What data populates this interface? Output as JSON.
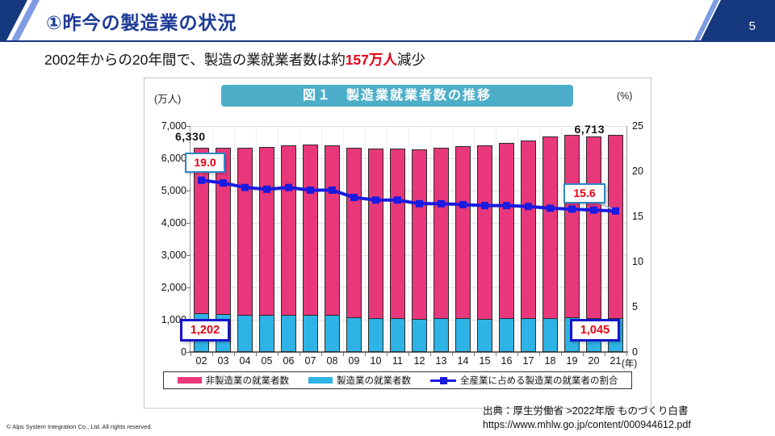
{
  "header": {
    "title": "①昨今の製造業の状況",
    "page_number": "5"
  },
  "subtitle": {
    "prefix": "2002年からの20年間で、製造の業就業者数は約",
    "highlight": "157万人",
    "suffix": "減少"
  },
  "figure": {
    "banner_title": "図１　製造業就業者数の推移",
    "left_unit": "(万人)",
    "right_unit": "(%)",
    "x_unit": "(年)",
    "annotations": {
      "first_total": "6,330",
      "last_total": "6,713",
      "first_share": "19.0",
      "last_share": "15.6",
      "first_mfg": "1,202",
      "last_mfg": "1,045"
    }
  },
  "legend": {
    "items": [
      {
        "label": "非製造業の就業者数",
        "swatch": "bar",
        "color": "#E8387B"
      },
      {
        "label": "製造業の就業者数",
        "swatch": "bar",
        "color": "#2EB3E6"
      },
      {
        "label": "全産業に占める製造業の就業者の割合",
        "swatch": "line-marker",
        "color": "#1A1AE0"
      }
    ]
  },
  "chart_data": {
    "type": "combo (stacked bar + line)",
    "title": "図１　製造業就業者数の推移",
    "categories": [
      "02",
      "03",
      "04",
      "05",
      "06",
      "07",
      "08",
      "09",
      "10",
      "11",
      "12",
      "13",
      "14",
      "15",
      "16",
      "17",
      "18",
      "19",
      "20",
      "21"
    ],
    "x_axis_unit": "年",
    "left_axis": {
      "unit": "万人",
      "min": 0,
      "max": 7000,
      "step": 1000
    },
    "right_axis": {
      "unit": "%",
      "min": 0,
      "max": 25,
      "step": 5
    },
    "grid": true,
    "legend_position": "bottom",
    "series": [
      {
        "name": "非製造業の就業者数",
        "kind": "bar-stacked",
        "color": "#E8387B",
        "values": [
          5128,
          5138,
          5179,
          5214,
          5228,
          5276,
          5263,
          5232,
          5238,
          5236,
          5248,
          5287,
          5331,
          5367,
          5420,
          5490,
          5604,
          5661,
          5625,
          5668
        ]
      },
      {
        "name": "製造業の就業者数",
        "kind": "bar-stacked",
        "color": "#2EB3E6",
        "values": [
          1202,
          1178,
          1150,
          1142,
          1161,
          1151,
          1146,
          1082,
          1060,
          1057,
          1032,
          1039,
          1040,
          1035,
          1045,
          1052,
          1060,
          1063,
          1051,
          1045
        ]
      },
      {
        "name": "全産業に占める製造業の就業者の割合",
        "kind": "line",
        "axis": "right",
        "color": "#1A1AE0",
        "values": [
          19.0,
          18.7,
          18.2,
          18.0,
          18.2,
          17.9,
          17.9,
          17.1,
          16.8,
          16.8,
          16.4,
          16.4,
          16.3,
          16.2,
          16.2,
          16.1,
          15.9,
          15.8,
          15.7,
          15.6
        ]
      }
    ],
    "stacked_totals": [
      6330,
      6316,
      6329,
      6356,
      6389,
      6427,
      6409,
      6314,
      6298,
      6293,
      6280,
      6326,
      6371,
      6402,
      6465,
      6542,
      6664,
      6724,
      6676,
      6713
    ],
    "labeled_points": {
      "total_2002": 6330,
      "total_2021": 6713,
      "manufacturing_2002": 1202,
      "manufacturing_2021": 1045,
      "share_2002": 19.0,
      "share_2021": 15.6
    }
  },
  "footer": {
    "copyright": "© Alps System Integration Co., Ltd. All rights reserved.",
    "source_line1": "出典：厚生労働省 >2022年版 ものづくり白書",
    "source_line2": "https://www.mhlw.go.jp/content/000944612.pdf"
  },
  "colors": {
    "header_navy": "#16387E",
    "header_stripe": "#7E9BE3",
    "title_text": "#1D3A96",
    "highlight_red": "#E60012",
    "banner_teal": "#4DAEC9",
    "bar_pink": "#E8387B",
    "bar_cyan": "#2EB3E6",
    "line_blue": "#1A1AE0",
    "pct_box_border": "#2E86C6",
    "mfg_box_border": "#1515C8"
  }
}
